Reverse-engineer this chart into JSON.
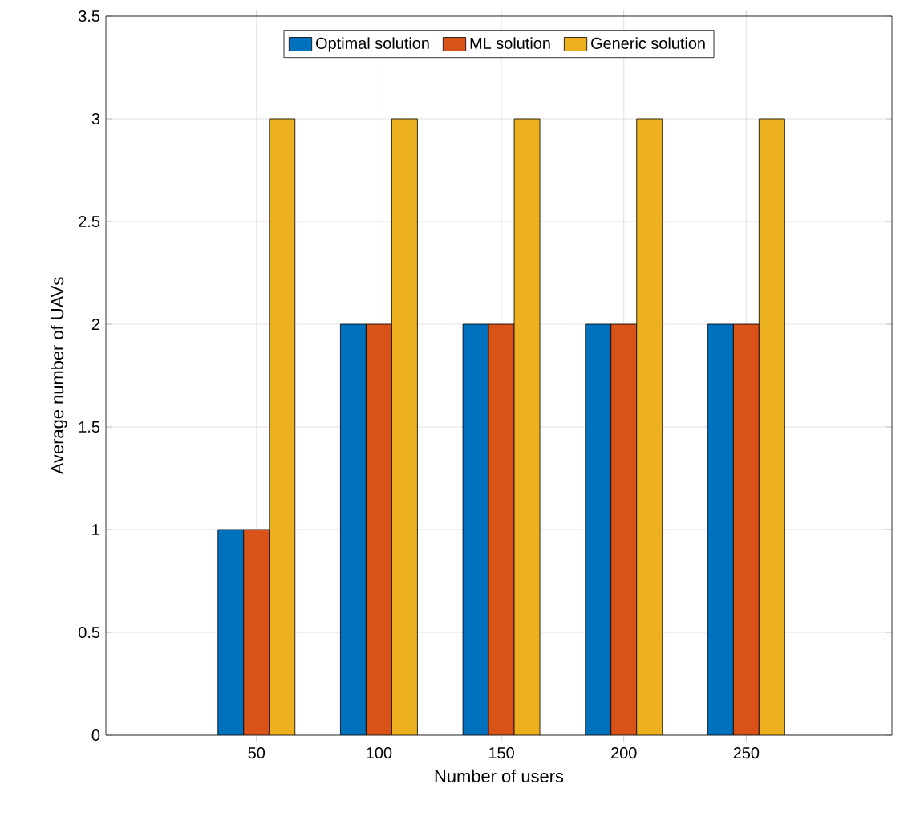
{
  "chart_data": {
    "type": "bar",
    "xlabel": "Number of users",
    "ylabel": "Average number of UAVs",
    "categories": [
      "50",
      "100",
      "150",
      "200",
      "250"
    ],
    "series": [
      {
        "name": "Optimal solution",
        "color": "#0072bd",
        "values": [
          1,
          2,
          2,
          2,
          2
        ]
      },
      {
        "name": "ML solution",
        "color": "#d95319",
        "values": [
          1,
          2,
          2,
          2,
          2
        ]
      },
      {
        "name": "Generic solution",
        "color": "#edb120",
        "values": [
          3,
          3,
          3,
          3,
          3
        ]
      }
    ],
    "ylim": [
      0,
      3.5
    ],
    "yticks": [
      0,
      0.5,
      1,
      1.5,
      2,
      2.5,
      3,
      3.5
    ],
    "grid": true,
    "legend": "top"
  }
}
